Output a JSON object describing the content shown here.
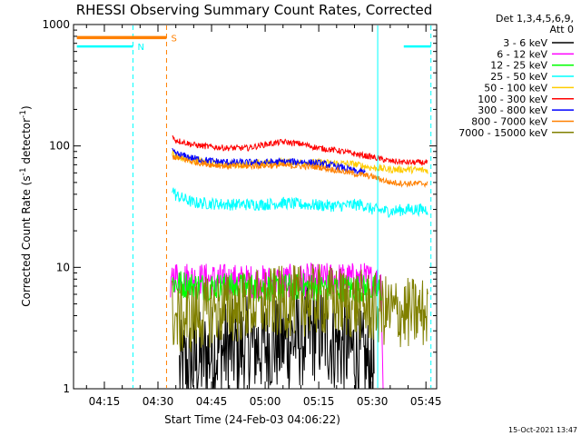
{
  "chart_data": {
    "type": "line",
    "title": "RHESSI Observing Summary Count Rates, Corrected",
    "xlabel": "Start Time (24-Feb-03 04:06:22)",
    "ylabel": "Corrected Count Rate (s",
    "ylabel_sup1": "-1",
    "ylabel_mid": " detector",
    "ylabel_sup2": "-1",
    "ylabel_end": ")",
    "x_unit": "minutes since 04:00 UT",
    "xlim": [
      6.37,
      108
    ],
    "ylim": [
      1,
      1000
    ],
    "yscale": "log",
    "x_ticks": [
      {
        "v": 15,
        "label": "04:15"
      },
      {
        "v": 30,
        "label": "04:30"
      },
      {
        "v": 45,
        "label": "04:45"
      },
      {
        "v": 60,
        "label": "05:00"
      },
      {
        "v": 75,
        "label": "05:15"
      },
      {
        "v": 90,
        "label": "05:30"
      },
      {
        "v": 105,
        "label": "05:45"
      }
    ],
    "y_ticks": [
      {
        "v": 1,
        "label": "1"
      },
      {
        "v": 10,
        "label": "10"
      },
      {
        "v": 100,
        "label": "100"
      },
      {
        "v": 1000,
        "label": "1000"
      }
    ],
    "legend_header": [
      "Det 1,3,4,5,6,9,",
      "Att 0"
    ],
    "legend_placement": "right",
    "series": [
      {
        "name": "3 - 6 keV",
        "color": "#000000",
        "x": [
          36,
          40,
          45,
          50,
          55,
          60,
          65,
          70,
          75,
          80,
          85,
          89,
          90.5
        ],
        "y": [
          1.4,
          1.6,
          2.0,
          2.1,
          2.2,
          2.3,
          2.4,
          2.6,
          3.0,
          2.4,
          2.0,
          1.5,
          1.5
        ],
        "noise": 0.42
      },
      {
        "name": "6 - 12 keV",
        "color": "#ff00ff",
        "x": [
          33.5,
          34,
          40,
          50,
          60,
          70,
          80,
          88,
          92.5,
          93
        ],
        "y": [
          5.2,
          8.5,
          8.0,
          7.8,
          7.6,
          7.8,
          8.0,
          8.0,
          7.6,
          1.0
        ],
        "noise": 0.14
      },
      {
        "name": "12 - 25 keV",
        "color": "#00ff00",
        "x": [
          34,
          40,
          50,
          60,
          70,
          80,
          90,
          92.5
        ],
        "y": [
          7.5,
          7.0,
          6.9,
          6.8,
          6.9,
          6.8,
          6.6,
          6.4
        ],
        "noise": 0.12
      },
      {
        "name": "25 - 50 keV",
        "color": "#00ffff",
        "x": [
          34,
          35,
          40,
          50,
          60,
          65,
          70,
          80,
          87,
          90,
          95,
          100,
          105.5
        ],
        "y": [
          45,
          39,
          34,
          33,
          33,
          34,
          33,
          32,
          33,
          30,
          29,
          30,
          30
        ],
        "noise": 0.05
      },
      {
        "name": "50 - 100 keV",
        "color": "#ffcc00",
        "x": [
          34,
          35,
          40,
          45,
          50,
          55,
          60,
          65,
          70,
          75,
          80,
          85,
          90,
          95,
          100,
          105.5
        ],
        "y": [
          88,
          82,
          76,
          72,
          70,
          71,
          72,
          74,
          73,
          73,
          72,
          71,
          66,
          64,
          64,
          63
        ],
        "noise": 0.03
      },
      {
        "name": "100 - 300 keV",
        "color": "#ff0000",
        "x": [
          34,
          35,
          40,
          45,
          50,
          55,
          60,
          65,
          70,
          75,
          80,
          85,
          90,
          95,
          100,
          105.5
        ],
        "y": [
          118,
          112,
          102,
          98,
          96,
          96,
          103,
          108,
          104,
          96,
          92,
          86,
          81,
          75,
          73,
          73
        ],
        "noise": 0.025
      },
      {
        "name": "300 - 800 keV",
        "color": "#0000ff",
        "x": [
          34,
          35,
          40,
          45,
          50,
          55,
          60,
          65,
          70,
          75,
          80,
          85,
          88
        ],
        "y": [
          90,
          86,
          79,
          75,
          73,
          73,
          73,
          74,
          74,
          72,
          68,
          62,
          60
        ],
        "noise": 0.03
      },
      {
        "name": "800 - 7000 keV",
        "color": "#ff8000",
        "x": [
          34,
          35,
          40,
          45,
          50,
          55,
          60,
          65,
          70,
          75,
          80,
          85,
          90,
          95,
          100,
          105.5
        ],
        "y": [
          82,
          80,
          74,
          70,
          68,
          68,
          69,
          69,
          68,
          67,
          63,
          59,
          56,
          50,
          49,
          49
        ],
        "noise": 0.025
      },
      {
        "name": "7000 - 15000 keV",
        "color": "#808000",
        "x": [
          34,
          35,
          40,
          45,
          50,
          55,
          60,
          65,
          70,
          75,
          80,
          85,
          90,
          95,
          100,
          105.5
        ],
        "y": [
          4.2,
          3.6,
          3.9,
          4.4,
          4.6,
          4.8,
          5.0,
          5.2,
          5.3,
          5.4,
          5.2,
          5.0,
          4.6,
          4.3,
          4.2,
          4.2
        ],
        "noise": 0.3
      }
    ],
    "annotations": {
      "flag_S": {
        "label": "S",
        "color": "#ff8000",
        "x_start": 7.3,
        "x_end": 32.4,
        "y": 780
      },
      "flag_N": {
        "label": "N",
        "color": "#00ffff",
        "intervals": [
          [
            7.3,
            23.0
          ],
          [
            98.8,
            106.4
          ]
        ],
        "y": 660
      },
      "vlines": [
        {
          "x": 23.0,
          "color": "#00ffff",
          "style": "dashed"
        },
        {
          "x": 32.4,
          "color": "#ff8000",
          "style": "dashed"
        },
        {
          "x": 91.5,
          "color": "#00ffff",
          "style": "solid"
        },
        {
          "x": 106.4,
          "color": "#00ffff",
          "style": "dashed"
        }
      ]
    },
    "footer_stamp": "15-Oct-2021 13:47"
  }
}
